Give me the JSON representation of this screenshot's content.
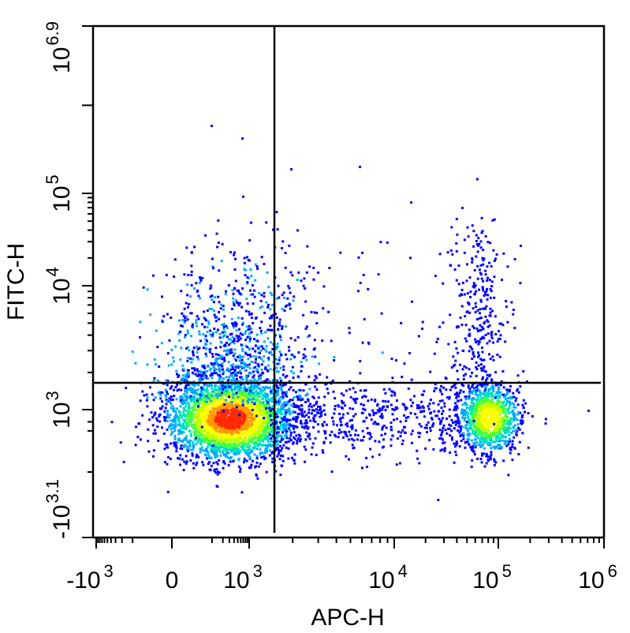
{
  "chart_data": {
    "type": "scatter",
    "title": "",
    "xlabel": "APC-H",
    "ylabel": "FITC-H",
    "x_scale": "biexponential",
    "y_scale": "biexponential",
    "grid": false,
    "legend": "none",
    "x_ticks": [
      {
        "base": "-10",
        "exp": "3"
      },
      {
        "base": "0",
        "exp": ""
      },
      {
        "base": "10",
        "exp": "3"
      },
      {
        "base": "10",
        "exp": "4"
      },
      {
        "base": "10",
        "exp": "5"
      },
      {
        "base": "10",
        "exp": "6"
      }
    ],
    "y_ticks": [
      {
        "base": "-10",
        "exp": "3.1"
      },
      {
        "base": "10",
        "exp": "3"
      },
      {
        "base": "10",
        "exp": "4"
      },
      {
        "base": "10",
        "exp": "5"
      },
      {
        "base": "10",
        "exp": "6.9"
      }
    ],
    "quadrant_gate": {
      "x": 1500,
      "y": 1800
    },
    "populations": [
      {
        "name": "APC-negative FITC-low cluster",
        "center_x": 300,
        "center_y": 550,
        "events": "dense"
      },
      {
        "name": "APC-positive FITC-low cluster",
        "center_x": 80000,
        "center_y": 600,
        "events": "moderate"
      },
      {
        "name": "APC-positive FITC-high tail",
        "center_x": 60000,
        "center_y": 6000,
        "events": "sparse"
      },
      {
        "name": "APC-negative FITC-high tail",
        "center_x": 400,
        "center_y": 5000,
        "events": "sparse"
      }
    ],
    "density_colors": [
      "#0000ff",
      "#00aaff",
      "#00e0c0",
      "#40ff40",
      "#c0ff00",
      "#ffff00",
      "#ff9900",
      "#ff2a00"
    ]
  }
}
